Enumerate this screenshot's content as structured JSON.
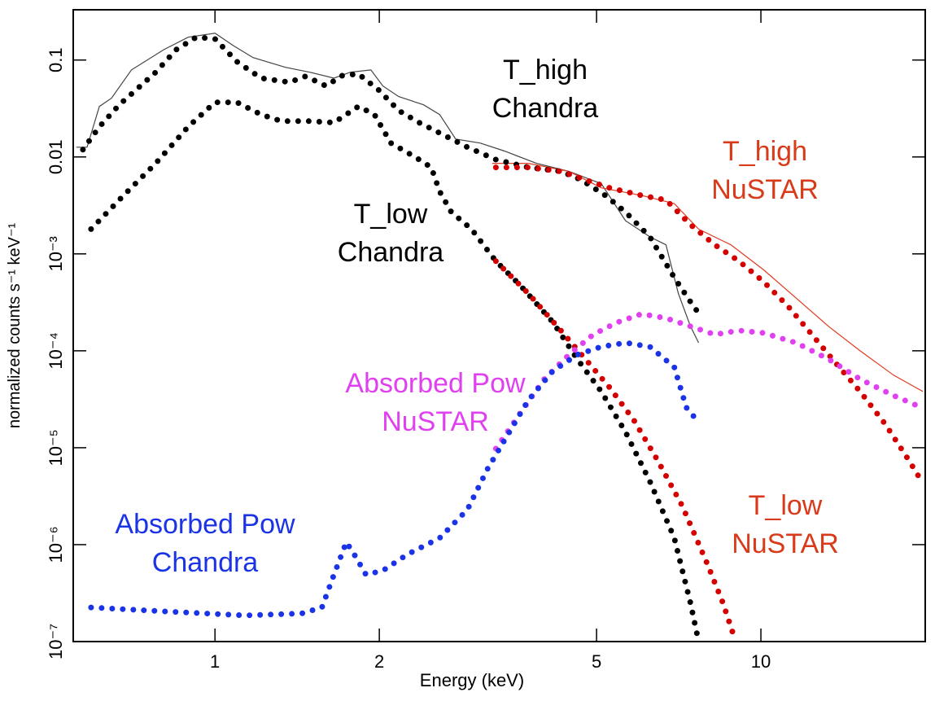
{
  "chart_data": {
    "type": "line",
    "xscale": "log",
    "yscale": "log",
    "x_label": "Energy (keV)",
    "y_label": "normalized counts s⁻¹ keV⁻¹",
    "xlim": [
      0.55,
      20
    ],
    "ylim": [
      1e-07,
      0.33
    ],
    "xticks": [
      1,
      2,
      5,
      10
    ],
    "yticks": [
      {
        "value": 1e-07,
        "label": "10⁻⁷"
      },
      {
        "value": 1e-06,
        "label": "10⁻⁶"
      },
      {
        "value": 1e-05,
        "label": "10⁻⁵"
      },
      {
        "value": 0.0001,
        "label": "10⁻⁴"
      },
      {
        "value": 0.001,
        "label": "10⁻³"
      },
      0.01,
      0.1
    ],
    "series": [
      {
        "color": "#444444",
        "style": "solid",
        "x": [
          0.557,
          0.583,
          0.614,
          0.646,
          0.703,
          0.806,
          0.893,
          1,
          1.078,
          1.174,
          1.346,
          1.491,
          1.652,
          1.77,
          1.93,
          2.03,
          2.17,
          2.41,
          2.58,
          2.76,
          3.06,
          3.39,
          3.88,
          4.45,
          5.1,
          5.65,
          6.26,
          6.7,
          7.06,
          7.43,
          7.69
        ],
        "values": [
          0.0126,
          0.0126,
          0.0332,
          0.0403,
          0.079,
          0.128,
          0.172,
          0.189,
          0.142,
          0.106,
          0.084,
          0.0748,
          0.065,
          0.0748,
          0.079,
          0.054,
          0.042,
          0.0345,
          0.0274,
          0.0153,
          0.0139,
          0.0115,
          0.0086,
          0.0071,
          0.0053,
          0.0022,
          0.0015,
          0.00124,
          0.00039,
          0.000179,
          0.000121
        ]
      },
      {
        "color": "#e03a20",
        "style": "solid",
        "x": [
          3.22,
          3.75,
          4.45,
          5.1,
          6.05,
          6.94,
          7.69,
          8.81,
          10.1,
          11.6,
          13.3,
          15.2,
          17.5,
          19.8
        ],
        "values": [
          0.0086,
          0.0086,
          0.0071,
          0.0048,
          0.004,
          0.0033,
          0.0018,
          0.00124,
          0.00069,
          0.00035,
          0.000179,
          0.0001,
          5.6e-05,
          3.8e-05
        ]
      },
      {
        "color": "#000000",
        "style": "dotted",
        "x": [
          0.573,
          0.614,
          0.668,
          0.716,
          0.779,
          0.849,
          0.924,
          1,
          1.097,
          1.215,
          1.369,
          1.466,
          1.597,
          1.71,
          1.831,
          1.995,
          2.173,
          2.366,
          2.62,
          2.9,
          3.27,
          3.75,
          4.3,
          4.69,
          5.19,
          5.65,
          6.26,
          6.94,
          7.43,
          7.77
        ],
        "values": [
          0.0119,
          0.0205,
          0.0345,
          0.0489,
          0.0748,
          0.128,
          0.172,
          0.165,
          0.096,
          0.065,
          0.059,
          0.068,
          0.054,
          0.069,
          0.072,
          0.049,
          0.03,
          0.0226,
          0.0169,
          0.0126,
          0.0094,
          0.0078,
          0.0071,
          0.0058,
          0.004,
          0.0027,
          0.0015,
          0.00057,
          0.00032,
          0.000225
        ]
      },
      {
        "color": "#000000",
        "style": "dotted",
        "x": [
          0.593,
          0.68,
          0.779,
          0.893,
          1,
          1.097,
          1.215,
          1.323,
          1.491,
          1.652,
          1.831,
          1.96,
          2.1,
          2.325,
          2.49,
          2.58,
          2.71,
          2.95,
          3.27,
          3.63,
          4.16,
          4.61,
          5.1,
          5.65,
          6.26,
          6.94,
          7.43,
          7.69
        ],
        "values": [
          0.0018,
          0.004,
          0.0086,
          0.0205,
          0.0366,
          0.0366,
          0.0274,
          0.0234,
          0.0234,
          0.0226,
          0.0332,
          0.0274,
          0.0139,
          0.01,
          0.0078,
          0.0044,
          0.0027,
          0.0018,
          0.00084,
          0.00047,
          0.000197,
          8.2e-05,
          3.8e-05,
          1.45e-05,
          4.5e-06,
          1.17e-06,
          2.5e-07,
          1e-07
        ]
      },
      {
        "color": "#d40000",
        "style": "dotted",
        "x": [
          3.27,
          3.75,
          4.3,
          4.77,
          5.28,
          6.05,
          6.7,
          7.43,
          8.23,
          9.12,
          10.1,
          11.2,
          12.4,
          13.7,
          15.2,
          16.9,
          18.7,
          19.7
        ],
        "values": [
          0.0078,
          0.0078,
          0.0071,
          0.0058,
          0.0048,
          0.004,
          0.0036,
          0.002,
          0.00124,
          0.00084,
          0.00052,
          0.00029,
          0.000147,
          7.5e-05,
          3.8e-05,
          1.75e-05,
          7.3e-06,
          4.5e-06
        ]
      },
      {
        "color": "#d40000",
        "style": "dotted",
        "x": [
          3.27,
          3.75,
          4.3,
          4.77,
          5.28,
          5.85,
          6.48,
          7.18,
          7.96,
          8.52,
          8.97
        ],
        "values": [
          0.00084,
          0.00039,
          0.000162,
          8.2e-05,
          4.2e-05,
          1.93e-05,
          7.3e-06,
          2.5e-06,
          6.5e-07,
          2.5e-07,
          1.04e-07
        ]
      },
      {
        "color": "#e040f0",
        "style": "dotted",
        "x": [
          3.27,
          3.63,
          4.01,
          4.45,
          4.93,
          5.46,
          6.05,
          6.7,
          7.43,
          8.23,
          9.12,
          10.1,
          11.6,
          13.3,
          15.2,
          17.5,
          19.7
        ],
        "values": [
          9.8e-06,
          2.3e-05,
          5.1e-05,
          9.1e-05,
          0.000147,
          0.000197,
          0.00024,
          0.000217,
          0.000179,
          0.000147,
          0.000162,
          0.000153,
          0.000121,
          8.2e-05,
          5.1e-05,
          3.45e-05,
          2.6e-05
        ]
      },
      {
        "color": "#1a33e6",
        "style": "dotted",
        "x": [
          0.593,
          0.806,
          1.135,
          1.441,
          1.57,
          1.652,
          1.74,
          1.8,
          1.89,
          2.03,
          2.25,
          2.58,
          2.9,
          3.16,
          3.39,
          3.75,
          4.16,
          4.61,
          5.1,
          5.65,
          6.26,
          6.94,
          7.3,
          7.74
        ],
        "values": [
          2.25e-07,
          2.05e-07,
          1.86e-07,
          1.95e-07,
          2.25e-07,
          4.9e-07,
          1.06e-06,
          7.9e-07,
          4.9e-07,
          5.4e-07,
          7.9e-07,
          1.17e-06,
          2.3e-06,
          6.1e-06,
          1.19e-05,
          3.1e-05,
          6.2e-05,
          9.1e-05,
          0.00011,
          0.000121,
          0.00011,
          6.8e-05,
          2.6e-05,
          1.75e-05
        ]
      }
    ],
    "annotations": [
      {
        "lines": [
          "T_high",
          "Chandra"
        ],
        "color": "#000000"
      },
      {
        "lines": [
          "T_low",
          "Chandra"
        ],
        "color": "#000000"
      },
      {
        "lines": [
          "T_high",
          "NuSTAR"
        ],
        "color": "#d93a1a"
      },
      {
        "lines": [
          "Absorbed Pow",
          "NuSTAR"
        ],
        "color": "#e040f0"
      },
      {
        "lines": [
          "Absorbed Pow",
          "Chandra"
        ],
        "color": "#1a33e6"
      },
      {
        "lines": [
          "T_low",
          "NuSTAR"
        ],
        "color": "#d93a1a"
      }
    ]
  }
}
